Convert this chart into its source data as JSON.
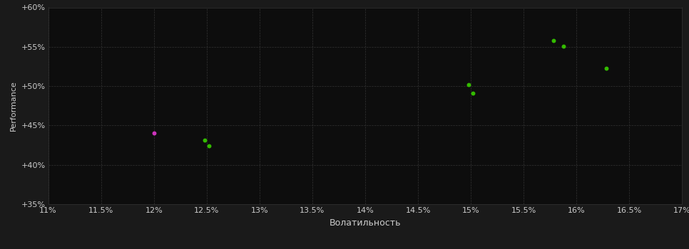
{
  "background_color": "#1a1a1a",
  "plot_bg_color": "#0d0d0d",
  "grid_color": "#333333",
  "text_color": "#cccccc",
  "xlabel": "Волатильность",
  "ylabel": "Performance",
  "xlim": [
    0.11,
    0.17
  ],
  "ylim": [
    0.35,
    0.6
  ],
  "xticks": [
    0.11,
    0.115,
    0.12,
    0.125,
    0.13,
    0.135,
    0.14,
    0.145,
    0.15,
    0.155,
    0.16,
    0.165,
    0.17
  ],
  "yticks": [
    0.35,
    0.4,
    0.45,
    0.5,
    0.55,
    0.6
  ],
  "points_green": [
    [
      0.1248,
      0.431
    ],
    [
      0.1252,
      0.424
    ],
    [
      0.1498,
      0.502
    ],
    [
      0.1502,
      0.491
    ],
    [
      0.1578,
      0.558
    ],
    [
      0.1588,
      0.551
    ],
    [
      0.1628,
      0.523
    ]
  ],
  "points_magenta": [
    [
      0.12,
      0.44
    ]
  ],
  "green_color": "#33bb00",
  "magenta_color": "#cc33bb",
  "marker_size": 18,
  "axis_fontsize": 8,
  "tick_fontsize": 8,
  "xlabel_fontsize": 9,
  "ylabel_fontsize": 8
}
